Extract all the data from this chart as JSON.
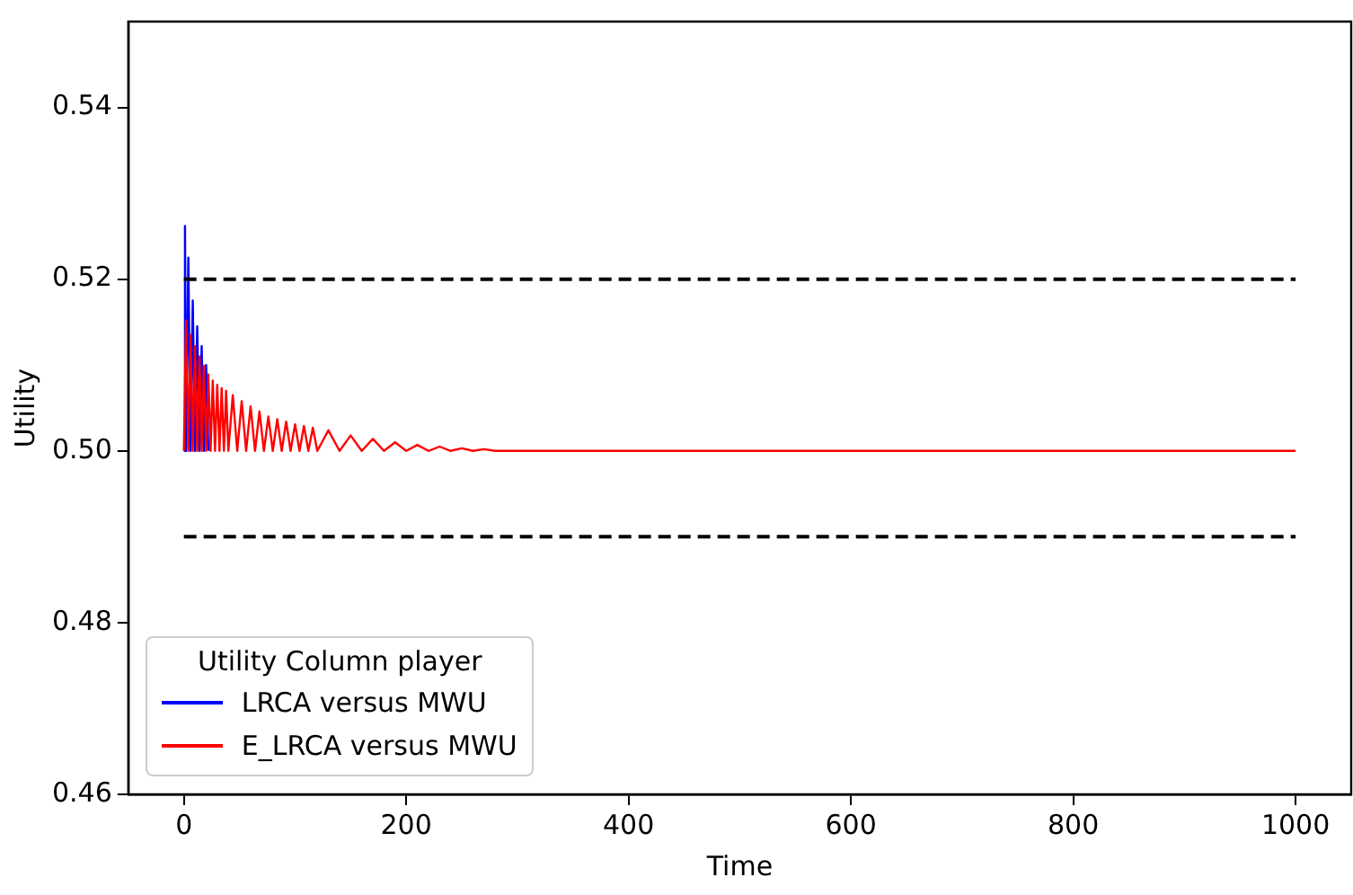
{
  "chart_data": {
    "type": "line",
    "xlabel": "Time",
    "ylabel": "Utility",
    "legend_title": "Utility Column player",
    "legend": "bottom left",
    "grid": false,
    "marker": "none",
    "xlim": [
      -50,
      1050
    ],
    "ylim": [
      0.46,
      0.55
    ],
    "xticks": [
      0,
      200,
      400,
      600,
      800,
      1000
    ],
    "yticks": [
      {
        "value": 0.46,
        "label": "0.46"
      },
      {
        "value": 0.48,
        "label": "0.48"
      },
      {
        "value": 0.5,
        "label": "0.50"
      },
      {
        "value": 0.52,
        "label": "0.52"
      },
      {
        "value": 0.54,
        "label": "0.54"
      }
    ],
    "series": [
      {
        "name": "LRCA versus MWU",
        "color": "#0000ff",
        "x": [
          0,
          1,
          2,
          4,
          6,
          8,
          10,
          12,
          14,
          16,
          18,
          20,
          22
        ],
        "values": [
          0.5,
          0.5262,
          0.5,
          0.5225,
          0.5,
          0.5175,
          0.5,
          0.5145,
          0.5,
          0.5122,
          0.5,
          0.51,
          0.5
        ]
      },
      {
        "name": "E_LRCA versus MWU",
        "color": "#ff0000",
        "x": [
          0,
          2,
          4,
          6,
          8,
          10,
          12,
          14,
          16,
          18,
          20,
          22,
          24,
          26,
          28,
          30,
          32,
          34,
          36,
          38,
          40,
          44,
          48,
          52,
          56,
          60,
          64,
          68,
          72,
          76,
          80,
          84,
          88,
          92,
          96,
          100,
          104,
          108,
          112,
          116,
          120,
          130,
          140,
          150,
          160,
          170,
          180,
          190,
          200,
          210,
          220,
          230,
          240,
          250,
          260,
          270,
          280,
          1000
        ],
        "values": [
          0.5,
          0.5152,
          0.5,
          0.5135,
          0.5,
          0.5122,
          0.5,
          0.511,
          0.5,
          0.5099,
          0.5,
          0.5089,
          0.5,
          0.5082,
          0.5,
          0.5077,
          0.5,
          0.5073,
          0.5,
          0.507,
          0.5,
          0.5065,
          0.5,
          0.5058,
          0.5,
          0.5052,
          0.5,
          0.5046,
          0.5,
          0.504,
          0.5,
          0.5037,
          0.5,
          0.5034,
          0.5,
          0.5031,
          0.5,
          0.5029,
          0.5,
          0.5027,
          0.5,
          0.5024,
          0.5,
          0.5018,
          0.5,
          0.5014,
          0.5,
          0.501,
          0.5,
          0.5007,
          0.5,
          0.5005,
          0.5,
          0.5003,
          0.5,
          0.5002,
          0.5,
          0.5
        ]
      }
    ],
    "ref_lines": [
      {
        "axis": "y",
        "value": 0.52,
        "color": "#000000",
        "line_style": "dashed"
      },
      {
        "axis": "y",
        "value": 0.49,
        "color": "#000000",
        "line_style": "dashed"
      }
    ]
  }
}
